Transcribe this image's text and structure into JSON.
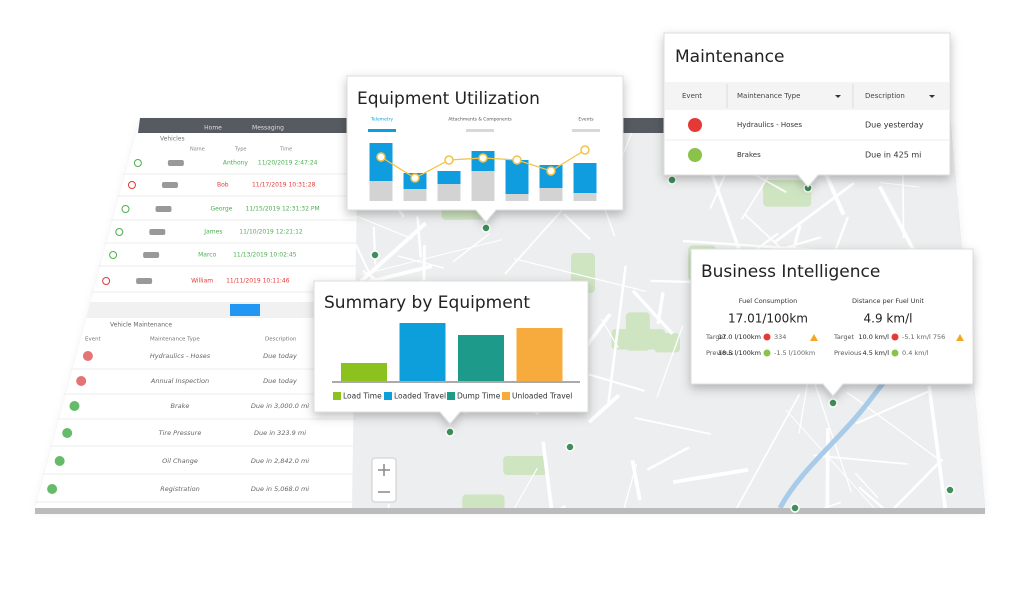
{
  "nav_tabs": [
    "Home",
    "Messaging"
  ],
  "vehicles": {
    "title": "Vehicles",
    "columns": [
      "Name",
      "Type",
      "Time"
    ],
    "rows": [
      {
        "name": "Anthony",
        "time": "11/20/2019 2:47:24",
        "color": "#4caf50"
      },
      {
        "name": "Bob",
        "time": "11/17/2019 10:31:28",
        "color": "#e53935"
      },
      {
        "name": "George",
        "time": "11/15/2019 12:31:32 PM",
        "color": "#4caf50"
      },
      {
        "name": "James",
        "time": "11/10/2019 12:21:12",
        "color": "#4caf50"
      },
      {
        "name": "Marco",
        "time": "11/13/2019 10:02:45",
        "color": "#4caf50"
      },
      {
        "name": "William",
        "time": "11/11/2019 10:11:46",
        "color": "#e53935"
      }
    ]
  },
  "vehicle_maintenance": {
    "title": "Vehicle Maintenance",
    "columns": [
      "Event",
      "Maintenance Type",
      "Description"
    ],
    "rows": [
      {
        "type": "Hydraulics - Hoses",
        "description": "Due today",
        "color": "#e57373"
      },
      {
        "type": "Annual Inspection",
        "description": "Due today",
        "color": "#e57373"
      },
      {
        "type": "Brake",
        "description": "Due in 3,000.0 mi",
        "color": "#66bb6a"
      },
      {
        "type": "Tire Pressure",
        "description": "Due in 323.9 mi",
        "color": "#66bb6a"
      },
      {
        "type": "Oil Change",
        "description": "Due in 2,842.0 mi",
        "color": "#66bb6a"
      },
      {
        "type": "Registration",
        "description": "Due in 5,068.0 mi",
        "color": "#66bb6a"
      }
    ]
  },
  "equipment_utilization": {
    "title": "Equipment Utilization",
    "tabs": [
      "Telemetry",
      "Attachments & Components",
      "Events"
    ],
    "chart_data": {
      "type": "bar",
      "stacked": true,
      "series": [
        {
          "color": "#d3d3d3",
          "values": [
            20,
            12,
            17,
            30,
            7,
            13,
            8
          ]
        },
        {
          "color": "#0f9ddf",
          "values": [
            38,
            16,
            13,
            20,
            34,
            23,
            30
          ]
        },
        {
          "type": "line",
          "color": "#f5c243",
          "values": [
            44,
            23,
            41,
            43,
            41,
            30,
            51
          ]
        }
      ]
    }
  },
  "summary_by_equipment": {
    "title": "Summary by Equipment",
    "chart_data": {
      "type": "bar",
      "categories": [
        "Load Time",
        "Loaded Travel",
        "Dump Time",
        "Unloaded Travel"
      ],
      "values": [
        18,
        58,
        46,
        53
      ],
      "colors": [
        "#8cc21e",
        "#0c9fdc",
        "#1d9a89",
        "#f6ab3c"
      ]
    }
  },
  "maintenance": {
    "title": "Maintenance",
    "columns": [
      "Event",
      "Maintenance Type",
      "Description"
    ],
    "rows": [
      {
        "type": "Hydraulics - Hoses",
        "description": "Due yesterday",
        "color": "#e53935"
      },
      {
        "type": "Brakes",
        "description": "Due in 425 mi",
        "color": "#8bc34a"
      }
    ]
  },
  "business_intelligence": {
    "title": "Business Intelligence",
    "metrics": [
      {
        "title": "Fuel Consumption",
        "value": "17.01/100km",
        "rows": [
          {
            "label": "Target",
            "value": "17.0 l/100km",
            "color": "#e53935",
            "delta": "334"
          },
          {
            "label": "Previous",
            "value": "18.5 l/100km",
            "color": "#8bc34a",
            "delta": "-1.5 l/100km"
          }
        ]
      },
      {
        "title": "Distance per Fuel Unit",
        "value": "4.9 km/l",
        "rows": [
          {
            "label": "Target",
            "value": "10.0 km/l",
            "color": "#e53935",
            "delta": "-5.1 km/l 756"
          },
          {
            "label": "Previous",
            "value": "4.5 km/l",
            "color": "#8bc34a",
            "delta": "0.4 km/l"
          }
        ]
      }
    ]
  }
}
